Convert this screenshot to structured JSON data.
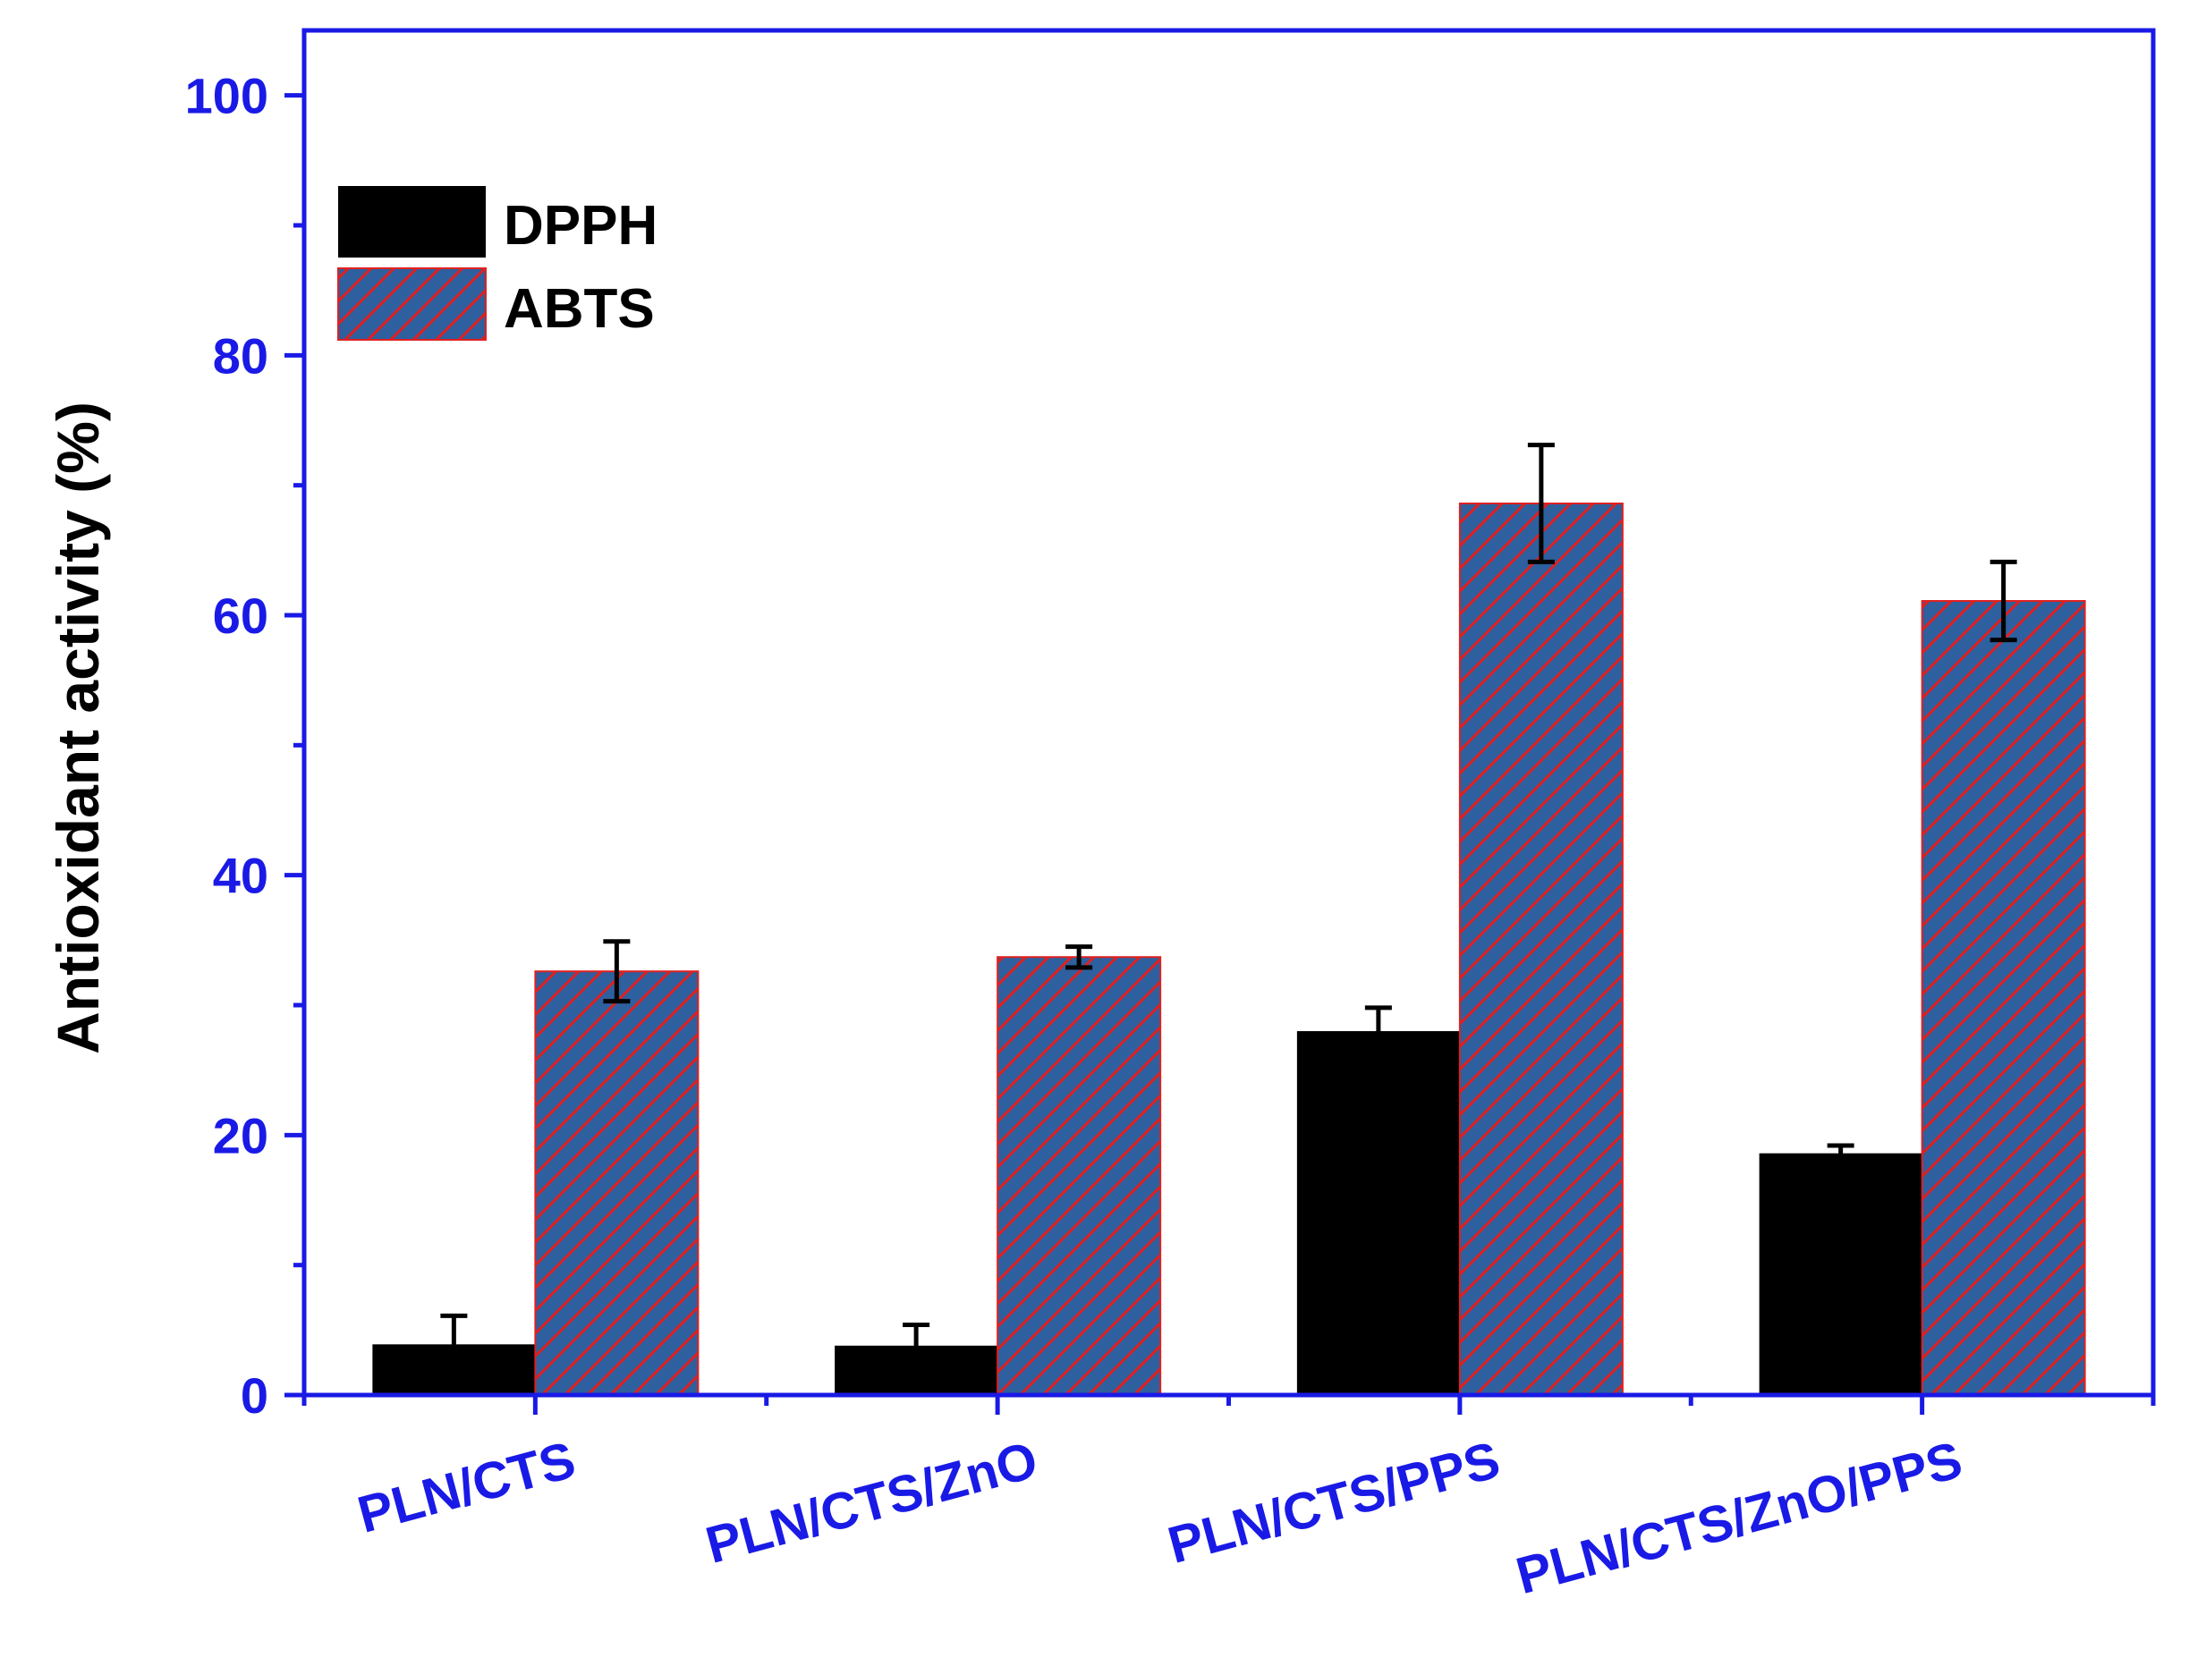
{
  "chart_data": {
    "type": "bar",
    "title": "",
    "xlabel": "",
    "ylabel": "Antioxidant activity (%)",
    "ylim": [
      0,
      105
    ],
    "yticks": [
      "0",
      "20",
      "40",
      "60",
      "80",
      "100"
    ],
    "categories": [
      "PLN/CTS",
      "PLN/CTS/ZnO",
      "PLN/CTS/PPS",
      "PLN/CTS/ZnO/PPS"
    ],
    "series": [
      {
        "name": "DPPH",
        "values": [
          3.9,
          3.8,
          28.0,
          18.6
        ],
        "errors": [
          2.2,
          1.6,
          1.8,
          0.6
        ],
        "color": "#000000",
        "pattern": "solid"
      },
      {
        "name": "ABTS",
        "values": [
          32.6,
          33.7,
          68.6,
          61.1
        ],
        "errors": [
          2.3,
          0.8,
          4.5,
          3.0
        ],
        "color": "#2e5f9e",
        "stripe_color": "#e02020",
        "pattern": "hatched"
      }
    ],
    "legend": {
      "position": "top-left",
      "entries": [
        "DPPH",
        "ABTS"
      ]
    },
    "grid": false,
    "colors": {
      "axis": "#1a1ae6",
      "tick_labels": "#1a1ae6",
      "axis_title": "#000000"
    }
  }
}
